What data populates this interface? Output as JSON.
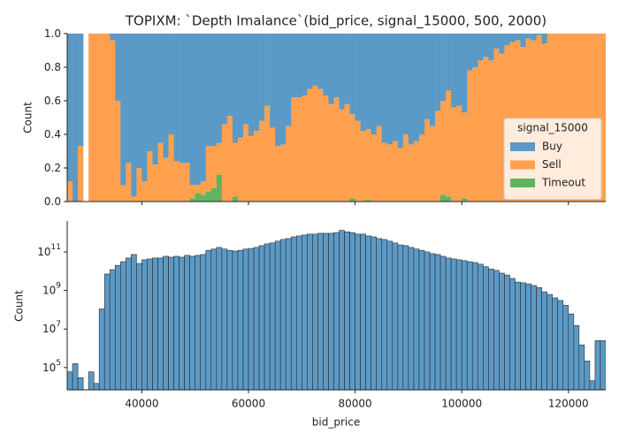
{
  "chart_data": [
    {
      "type": "histogram",
      "stacked": true,
      "title": "TOPIXM: `Depth Imalance`(bid_price, signal_15000, 500, 2000)",
      "ylabel": "Count",
      "legend_title": "signal_15000",
      "legend": "center right",
      "bins": [
        26000,
        27000,
        28000,
        29000,
        30000,
        31000,
        32000,
        33000,
        34000,
        35000,
        36000,
        37000,
        38000,
        39000,
        40000,
        41000,
        42000,
        43000,
        44000,
        45000,
        46000,
        47000,
        48000,
        49000,
        50000,
        51000,
        52000,
        53000,
        54000,
        55000,
        56000,
        57000,
        58000,
        59000,
        60000,
        61000,
        62000,
        63000,
        64000,
        65000,
        66000,
        67000,
        68000,
        69000,
        70000,
        71000,
        72000,
        73000,
        74000,
        75000,
        76000,
        77000,
        78000,
        79000,
        80000,
        81000,
        82000,
        83000,
        84000,
        85000,
        86000,
        87000,
        88000,
        89000,
        90000,
        91000,
        92000,
        93000,
        94000,
        95000,
        96000,
        97000,
        98000,
        99000,
        100000,
        101000,
        102000,
        103000,
        104000,
        105000,
        106000,
        107000,
        108000,
        109000,
        110000,
        111000,
        112000,
        113000,
        114000,
        115000,
        116000,
        117000,
        118000,
        119000,
        120000,
        121000,
        122000,
        123000,
        124000,
        125000,
        126000,
        127000
      ],
      "series": [
        {
          "name": "Buy",
          "color": "#5b9ac7",
          "values": [
            0.88,
            1,
            0.67,
            null,
            0,
            0,
            0,
            0,
            0.04,
            0.4,
            0.9,
            0.77,
            0.97,
            0.8,
            0.88,
            0.7,
            0.78,
            0.65,
            0.74,
            0.6,
            0.76,
            0.77,
            0.77,
            0.9,
            0.9,
            0.88,
            0.67,
            0.67,
            0.65,
            0.54,
            0.49,
            0.65,
            0.62,
            0.54,
            0.61,
            0.58,
            0.52,
            0.43,
            0.56,
            0.67,
            0.66,
            0.55,
            0.38,
            0.38,
            0.37,
            0.33,
            0.31,
            0.33,
            0.37,
            0.42,
            0.38,
            0.45,
            0.42,
            0.48,
            0.52,
            0.58,
            0.57,
            0.6,
            0.55,
            0.65,
            0.66,
            0.64,
            0.68,
            0.6,
            0.66,
            0.64,
            0.6,
            0.51,
            0.55,
            0.46,
            0.4,
            0.34,
            0.44,
            0.43,
            0.47,
            0.22,
            0.2,
            0.16,
            0.14,
            0.16,
            0.09,
            0.12,
            0.07,
            0.05,
            0.04,
            0.08,
            0.03,
            0.04,
            0.01,
            0.06,
            0,
            0,
            0,
            0,
            0,
            0,
            0,
            0,
            0,
            0,
            0
          ]
        },
        {
          "name": "Sell",
          "color": "#ffa04f",
          "values": [
            0.12,
            0,
            0.33,
            null,
            1,
            1,
            1,
            1,
            0.96,
            0.6,
            0.1,
            0.23,
            0.03,
            0.2,
            0.12,
            0.3,
            0.22,
            0.35,
            0.26,
            0.4,
            0.24,
            0.23,
            0.23,
            0.08,
            0.05,
            0.08,
            0.27,
            0.25,
            0.19,
            0.46,
            0.51,
            0.32,
            0.38,
            0.46,
            0.39,
            0.42,
            0.48,
            0.57,
            0.44,
            0.33,
            0.34,
            0.45,
            0.62,
            0.62,
            0.63,
            0.67,
            0.69,
            0.67,
            0.63,
            0.58,
            0.62,
            0.55,
            0.58,
            0.5,
            0.48,
            0.42,
            0.42,
            0.4,
            0.45,
            0.35,
            0.34,
            0.36,
            0.32,
            0.4,
            0.34,
            0.36,
            0.4,
            0.49,
            0.45,
            0.54,
            0.56,
            0.63,
            0.56,
            0.57,
            0.51,
            0.78,
            0.8,
            0.84,
            0.86,
            0.84,
            0.91,
            0.88,
            0.93,
            0.95,
            0.96,
            0.92,
            0.97,
            0.96,
            0.99,
            0.94,
            1,
            1,
            1,
            1,
            1,
            1,
            1,
            1,
            1,
            1,
            1
          ]
        },
        {
          "name": "Timeout",
          "color": "#5fb55f",
          "values": [
            0,
            0,
            0,
            null,
            0,
            0,
            0,
            0,
            0,
            0,
            0,
            0,
            0,
            0,
            0,
            0,
            0,
            0,
            0,
            0,
            0,
            0,
            0,
            0.02,
            0.05,
            0.04,
            0.06,
            0.08,
            0.16,
            0,
            0,
            0.03,
            0,
            0,
            0,
            0,
            0,
            0,
            0,
            0,
            0,
            0,
            0,
            0,
            0,
            0,
            0,
            0,
            0,
            0,
            0,
            0,
            0,
            0.02,
            0,
            0,
            0.01,
            0,
            0,
            0,
            0,
            0,
            0,
            0,
            0,
            0,
            0,
            0,
            0,
            0,
            0.04,
            0.03,
            0,
            0,
            0.02,
            0,
            0,
            0,
            0,
            0,
            0,
            0,
            0,
            0,
            0,
            0,
            0,
            0,
            0,
            0,
            0,
            0,
            0,
            0,
            0,
            0,
            0,
            0,
            0,
            0,
            0
          ]
        }
      ],
      "xlim": [
        26000,
        127000
      ],
      "ylim": [
        0,
        1
      ],
      "yticks": [
        {
          "value": 0,
          "label": "0.0"
        },
        0.2,
        0.4,
        0.6,
        0.8,
        {
          "value": 1,
          "label": "1.0"
        }
      ]
    },
    {
      "type": "histogram",
      "log_y": true,
      "xlabel": "bid_price",
      "ylabel": "Count",
      "color": "#5b9ac7",
      "bins": [
        26000,
        27000,
        28000,
        29000,
        30000,
        31000,
        32000,
        33000,
        34000,
        35000,
        36000,
        37000,
        38000,
        39000,
        40000,
        41000,
        42000,
        43000,
        44000,
        45000,
        46000,
        47000,
        48000,
        49000,
        50000,
        51000,
        52000,
        53000,
        54000,
        55000,
        56000,
        57000,
        58000,
        59000,
        60000,
        61000,
        62000,
        63000,
        64000,
        65000,
        66000,
        67000,
        68000,
        69000,
        70000,
        71000,
        72000,
        73000,
        74000,
        75000,
        76000,
        77000,
        78000,
        79000,
        80000,
        81000,
        82000,
        83000,
        84000,
        85000,
        86000,
        87000,
        88000,
        89000,
        90000,
        91000,
        92000,
        93000,
        94000,
        95000,
        96000,
        97000,
        98000,
        99000,
        100000,
        101000,
        102000,
        103000,
        104000,
        105000,
        106000,
        107000,
        108000,
        109000,
        110000,
        111000,
        112000,
        113000,
        114000,
        115000,
        116000,
        117000,
        118000,
        119000,
        120000,
        121000,
        122000,
        123000,
        124000,
        125000,
        126000,
        127000
      ],
      "values": [
        60000.0,
        160000.0,
        30000.0,
        null,
        60000.0,
        15000.0,
        110000000.0,
        7100000000.0,
        12000000000.0,
        20000000000.0,
        31000000000.0,
        48000000000.0,
        73000000000.0,
        25000000000.0,
        39000000000.0,
        43000000000.0,
        48000000000.0,
        48000000000.0,
        59000000000.0,
        53000000000.0,
        59000000000.0,
        53000000000.0,
        66000000000.0,
        59000000000.0,
        66000000000.0,
        73000000000.0,
        120000000000.0,
        140000000000.0,
        170000000000.0,
        140000000000.0,
        120000000000.0,
        110000000000.0,
        120000000000.0,
        140000000000.0,
        150000000000.0,
        170000000000.0,
        210000000000.0,
        260000000000.0,
        290000000000.0,
        360000000000.0,
        440000000000.0,
        490000000000.0,
        600000000000.0,
        670000000000.0,
        750000000000.0,
        830000000000.0,
        830000000000.0,
        920000000000.0,
        920000000000.0,
        920000000000.0,
        1000000000000.0,
        1300000000000.0,
        1100000000000.0,
        1000000000000.0,
        830000000000.0,
        830000000000.0,
        670000000000.0,
        600000000000.0,
        490000000000.0,
        440000000000.0,
        360000000000.0,
        290000000000.0,
        230000000000.0,
        210000000000.0,
        170000000000.0,
        140000000000.0,
        120000000000.0,
        100000000000.0,
        81000000000.0,
        73000000000.0,
        59000000000.0,
        48000000000.0,
        43000000000.0,
        39000000000.0,
        35000000000.0,
        31000000000.0,
        28000000000.0,
        23000000000.0,
        17000000000.0,
        13000000000.0,
        11000000000.0,
        7900000000.0,
        6300000000.0,
        4200000000.0,
        2700000000.0,
        2500000000.0,
        2200000000.0,
        1800000000.0,
        1400000000.0,
        850000000.0,
        620000000.0,
        410000000.0,
        300000000.0,
        170000000.0,
        60000000.0,
        15000000.0,
        1500000.0,
        220000.0,
        21000.0,
        2500000.0,
        2500000.0
      ],
      "xlim": [
        26000,
        127000
      ],
      "ylim": [
        7000,
        4000000000000.0
      ],
      "xticks": [
        40000,
        60000,
        80000,
        100000,
        120000
      ],
      "yticks": [
        {
          "value": 100000,
          "label": "10",
          "exp": "5"
        },
        {
          "value": 10000000,
          "label": "10",
          "exp": "7"
        },
        {
          "value": 1000000000,
          "label": "10",
          "exp": "9"
        },
        {
          "value": 100000000000,
          "label": "10",
          "exp": "11"
        }
      ]
    }
  ]
}
